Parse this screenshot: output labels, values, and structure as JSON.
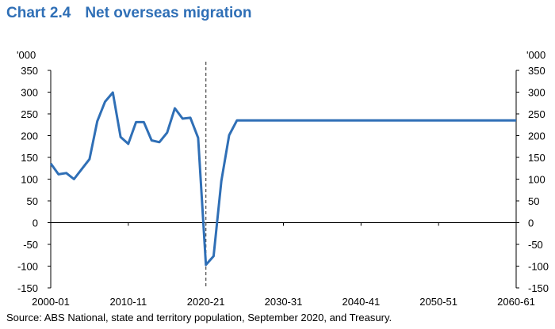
{
  "title": {
    "number": "Chart 2.4",
    "text": "Net overseas migration"
  },
  "source": "Source: ABS National, state and territory population, September 2020, and Treasury.",
  "chart_data": {
    "type": "line",
    "title": "Net overseas migration",
    "ylabel_left": "'000",
    "ylabel_right": "'000",
    "ylim": [
      -150,
      350
    ],
    "yticks": [
      -150,
      -100,
      -50,
      0,
      50,
      100,
      150,
      200,
      250,
      300,
      350
    ],
    "xlim": [
      2000,
      2060
    ],
    "xticks": [
      {
        "year": 2000,
        "label": "2000-01"
      },
      {
        "year": 2010,
        "label": "2010-11"
      },
      {
        "year": 2020,
        "label": "2020-21"
      },
      {
        "year": 2030,
        "label": "2030-31"
      },
      {
        "year": 2040,
        "label": "2040-41"
      },
      {
        "year": 2050,
        "label": "2050-51"
      },
      {
        "year": 2060,
        "label": "2060-61"
      }
    ],
    "divider_year": 2020,
    "line_color": "#2f6fb6",
    "series": [
      {
        "points": [
          [
            2000,
            136
          ],
          [
            2001,
            111
          ],
          [
            2002,
            114
          ],
          [
            2003,
            100
          ],
          [
            2004,
            123
          ],
          [
            2005,
            146
          ],
          [
            2006,
            233
          ],
          [
            2007,
            278
          ],
          [
            2008,
            299
          ],
          [
            2009,
            197
          ],
          [
            2010,
            181
          ],
          [
            2011,
            231
          ],
          [
            2012,
            231
          ],
          [
            2013,
            189
          ],
          [
            2014,
            185
          ],
          [
            2015,
            207
          ],
          [
            2016,
            263
          ],
          [
            2017,
            239
          ],
          [
            2018,
            241
          ],
          [
            2019,
            195
          ],
          [
            2020,
            -97
          ],
          [
            2021,
            -77
          ],
          [
            2022,
            96
          ],
          [
            2023,
            201
          ],
          [
            2024,
            235
          ],
          [
            2030,
            235
          ],
          [
            2040,
            235
          ],
          [
            2050,
            235
          ],
          [
            2060,
            235
          ]
        ]
      }
    ]
  }
}
